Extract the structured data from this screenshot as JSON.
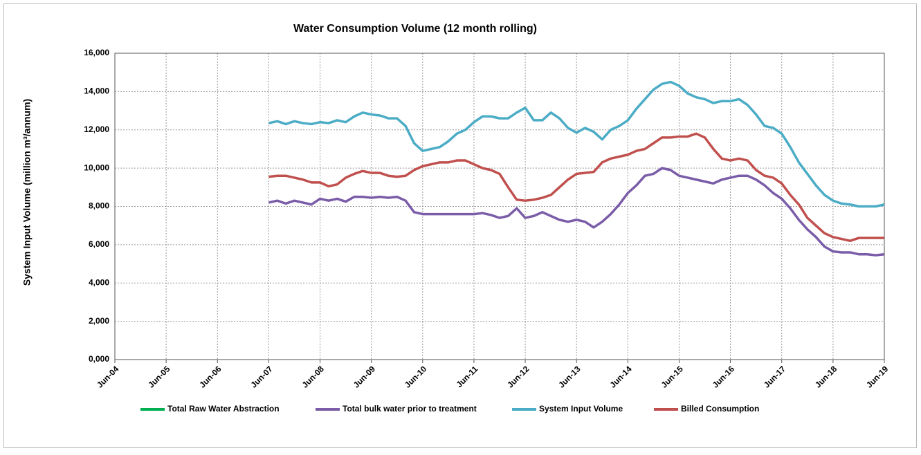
{
  "chart_data": {
    "type": "line",
    "title": "Water Consumption  Volume (12 month rolling)",
    "y_label": "System Input Volume (million m³/annum)",
    "x": [
      "2007-06",
      "2007-08",
      "2007-10",
      "2007-12",
      "2008-02",
      "2008-04",
      "2008-06",
      "2008-08",
      "2008-10",
      "2008-12",
      "2009-02",
      "2009-04",
      "2009-06",
      "2009-08",
      "2009-10",
      "2009-12",
      "2010-02",
      "2010-04",
      "2010-06",
      "2010-08",
      "2010-10",
      "2010-12",
      "2011-02",
      "2011-04",
      "2011-06",
      "2011-08",
      "2011-10",
      "2011-12",
      "2012-02",
      "2012-04",
      "2012-06",
      "2012-08",
      "2012-10",
      "2012-12",
      "2013-02",
      "2013-04",
      "2013-06",
      "2013-08",
      "2013-10",
      "2013-12",
      "2014-02",
      "2014-04",
      "2014-06",
      "2014-08",
      "2014-10",
      "2014-12",
      "2015-02",
      "2015-04",
      "2015-06",
      "2015-08",
      "2015-10",
      "2015-12",
      "2016-02",
      "2016-04",
      "2016-06",
      "2016-08",
      "2016-10",
      "2016-12",
      "2017-02",
      "2017-04",
      "2017-06",
      "2017-08",
      "2017-10",
      "2017-12",
      "2018-02",
      "2018-04",
      "2018-06",
      "2018-08",
      "2018-10",
      "2018-12",
      "2019-02",
      "2019-04",
      "2019-06"
    ],
    "series": [
      {
        "name": "Total Raw Water Abstraction",
        "color": "#00b050",
        "values": [
          null,
          null,
          null,
          null,
          null,
          null,
          null,
          null,
          null,
          null,
          null,
          null,
          null,
          null,
          null,
          null,
          null,
          null,
          null,
          null,
          null,
          null,
          null,
          null,
          null,
          null,
          null,
          null,
          null,
          null,
          null,
          null,
          null,
          null,
          null,
          null,
          null,
          null,
          null,
          null,
          null,
          null,
          null,
          null,
          null,
          null,
          null,
          null,
          null,
          null,
          null,
          null,
          null,
          null,
          null,
          null,
          null,
          null,
          null,
          null,
          null,
          null,
          null,
          null,
          null,
          null,
          null,
          null,
          null,
          null,
          null,
          null,
          null
        ]
      },
      {
        "name": "Total bulk water prior to treatment",
        "color": "#7a5ca8",
        "values": [
          8200,
          8300,
          8150,
          8300,
          8200,
          8100,
          8400,
          8300,
          8400,
          8250,
          8500,
          8500,
          8450,
          8500,
          8450,
          8500,
          8300,
          7700,
          7600,
          7600,
          7600,
          7600,
          7600,
          7600,
          7600,
          7650,
          7550,
          7400,
          7500,
          7900,
          7400,
          7500,
          7700,
          7500,
          7300,
          7200,
          7300,
          7200,
          6900,
          7200,
          7600,
          8100,
          8700,
          9100,
          9600,
          9700,
          10000,
          9900,
          9600,
          9500,
          9400,
          9300,
          9200,
          9400,
          9500,
          9600,
          9600,
          9400,
          9100,
          8700,
          8400,
          7900,
          7300,
          6800,
          6400,
          5900,
          5650,
          5600,
          5600,
          5500,
          5500,
          5450,
          5500
        ]
      },
      {
        "name": "System Input Volume",
        "color": "#4bacc6",
        "values": [
          12350,
          12450,
          12300,
          12450,
          12350,
          12300,
          12400,
          12350,
          12500,
          12400,
          12700,
          12900,
          12800,
          12750,
          12600,
          12600,
          12200,
          11300,
          10900,
          11000,
          11100,
          11400,
          11800,
          12000,
          12400,
          12700,
          12700,
          12600,
          12600,
          12900,
          13150,
          12500,
          12500,
          12900,
          12600,
          12100,
          11850,
          12100,
          11900,
          11500,
          12000,
          12200,
          12500,
          13100,
          13600,
          14100,
          14400,
          14500,
          14300,
          13900,
          13700,
          13600,
          13400,
          13500,
          13500,
          13600,
          13300,
          12800,
          12200,
          12100,
          11800,
          11100,
          10300,
          9700,
          9100,
          8600,
          8300,
          8150,
          8100,
          8000,
          8000,
          8000,
          8100
        ]
      },
      {
        "name": "Billed Consumption",
        "color": "#c0504d",
        "values": [
          9550,
          9600,
          9600,
          9500,
          9400,
          9250,
          9250,
          9050,
          9150,
          9500,
          9700,
          9850,
          9750,
          9750,
          9600,
          9550,
          9600,
          9900,
          10100,
          10200,
          10300,
          10300,
          10400,
          10400,
          10200,
          10000,
          9900,
          9700,
          9000,
          8350,
          8300,
          8350,
          8450,
          8600,
          9000,
          9400,
          9700,
          9750,
          9800,
          10300,
          10500,
          10600,
          10700,
          10900,
          11000,
          11300,
          11600,
          11600,
          11650,
          11650,
          11800,
          11600,
          11000,
          10500,
          10400,
          10500,
          10400,
          9900,
          9600,
          9500,
          9200,
          8600,
          8100,
          7400,
          7000,
          6600,
          6400,
          6300,
          6200,
          6350,
          6350,
          6350,
          6350
        ]
      }
    ],
    "xlim": [
      "2004-06",
      "2019-06"
    ],
    "xticks": [
      {
        "value": "2004-06",
        "label": "Jun-04"
      },
      {
        "value": "2005-06",
        "label": "Jun-05"
      },
      {
        "value": "2006-06",
        "label": "Jun-06"
      },
      {
        "value": "2007-06",
        "label": "Jun-07"
      },
      {
        "value": "2008-06",
        "label": "Jun-08"
      },
      {
        "value": "2009-06",
        "label": "Jun-09"
      },
      {
        "value": "2010-06",
        "label": "Jun-10"
      },
      {
        "value": "2011-06",
        "label": "Jun-11"
      },
      {
        "value": "2012-06",
        "label": "Jun-12"
      },
      {
        "value": "2013-06",
        "label": "Jun-13"
      },
      {
        "value": "2014-06",
        "label": "Jun-14"
      },
      {
        "value": "2015-06",
        "label": "Jun-15"
      },
      {
        "value": "2016-06",
        "label": "Jun-16"
      },
      {
        "value": "2017-06",
        "label": "Jun-17"
      },
      {
        "value": "2018-06",
        "label": "Jun-18"
      },
      {
        "value": "2019-06",
        "label": "Jun-19"
      }
    ],
    "ylim": [
      0,
      16000
    ],
    "yticks": [
      {
        "value": 0,
        "label": "0,000"
      },
      {
        "value": 2000,
        "label": "2,000"
      },
      {
        "value": 4000,
        "label": "4,000"
      },
      {
        "value": 6000,
        "label": "6,000"
      },
      {
        "value": 8000,
        "label": "8,000"
      },
      {
        "value": 10000,
        "label": "10,000"
      },
      {
        "value": 12000,
        "label": "12,000"
      },
      {
        "value": 14000,
        "label": "14,000"
      },
      {
        "value": 16000,
        "label": "16,000"
      }
    ],
    "grid": true,
    "legend": "bottom"
  }
}
